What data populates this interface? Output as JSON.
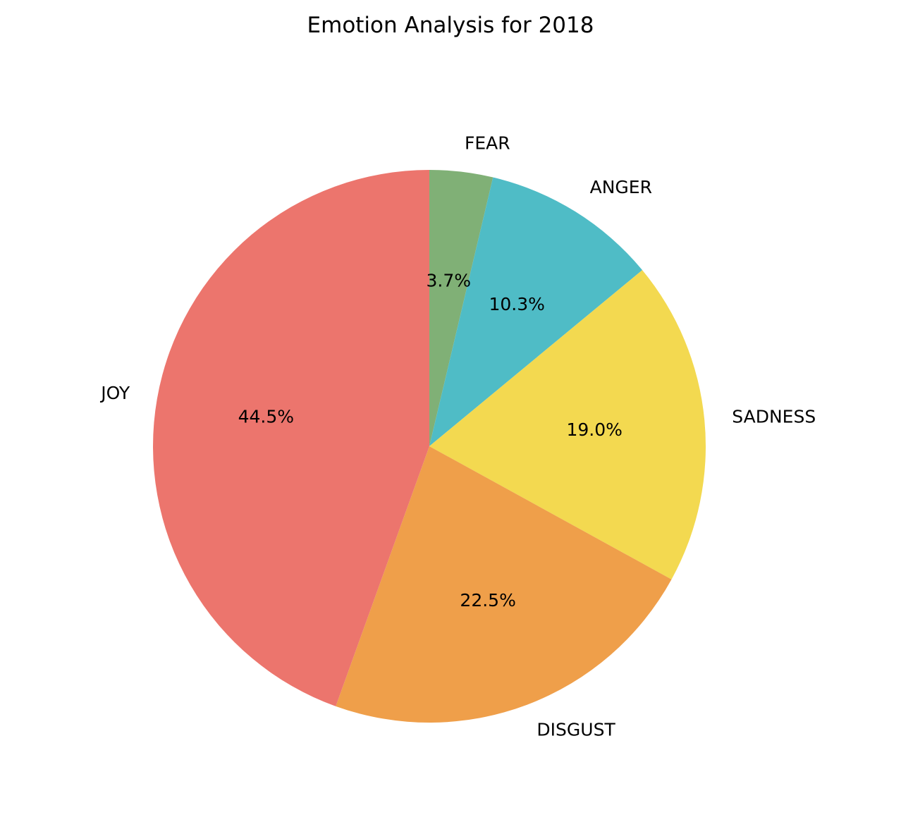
{
  "chart_data": {
    "type": "pie",
    "title": "Emotion Analysis for 2018",
    "categories": [
      "FEAR",
      "ANGER",
      "SADNESS",
      "DISGUST",
      "JOY"
    ],
    "values": [
      3.7,
      10.3,
      19.0,
      22.5,
      44.5
    ],
    "value_labels": [
      "3.7%",
      "10.3%",
      "19.0%",
      "22.5%",
      "44.5%"
    ],
    "colors": [
      "#80b076",
      "#4fbcc6",
      "#f3d950",
      "#ef9f4a",
      "#ec756d"
    ],
    "start_angle": "top",
    "direction": "clockwise",
    "legend": "none"
  }
}
